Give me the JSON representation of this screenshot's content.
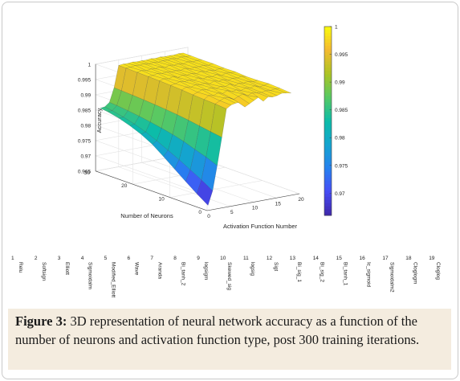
{
  "chart_data": {
    "type": "surface3d",
    "title": "",
    "xlabel": "Activation Function Number",
    "ylabel": "Number of Neurons",
    "zlabel": "Accuracy",
    "xlim": [
      0,
      20
    ],
    "ylim": [
      0,
      30
    ],
    "zlim": [
      0.965,
      1.0
    ],
    "x_ticks": [
      "0",
      "5",
      "10",
      "15",
      "20"
    ],
    "y_ticks": [
      "0",
      "10",
      "20",
      "30"
    ],
    "z_ticks": [
      "0.965",
      "0.97",
      "0.975",
      "0.98",
      "0.985",
      "0.99",
      "0.995",
      "1"
    ],
    "colorbar": {
      "colormap": "parula",
      "range": [
        0.966,
        1.0
      ],
      "ticks": [
        "0.97",
        "0.975",
        "0.98",
        "0.985",
        "0.99",
        "0.995",
        "1"
      ]
    },
    "activation_x": [
      1,
      2,
      3,
      4,
      5,
      6,
      7,
      8,
      9,
      10,
      11,
      12,
      13,
      14,
      15,
      16,
      17,
      18,
      19
    ],
    "neurons_y": [
      1,
      4,
      7,
      10,
      13,
      16,
      19,
      22,
      25,
      28,
      30
    ],
    "accuracy_z": [
      [
        0.966,
        0.9705,
        0.9785,
        0.9875,
        0.9965,
        0.9975,
        0.9978,
        0.9979,
        0.996,
        0.9968,
        0.9976,
        0.9984,
        0.9968,
        0.9979,
        0.9976,
        0.9978,
        0.9983,
        0.9981,
        0.9978
      ],
      [
        0.9685,
        0.9728,
        0.98,
        0.988,
        0.9968,
        0.9976,
        0.9982,
        0.998,
        0.9972,
        0.9979,
        0.9984,
        0.9976,
        0.9982,
        0.998,
        0.9978,
        0.9981,
        0.9979,
        0.9982,
        0.9981
      ],
      [
        0.9712,
        0.9748,
        0.9812,
        0.9886,
        0.997,
        0.998,
        0.9977,
        0.9983,
        0.9978,
        0.9985,
        0.9979,
        0.9982,
        0.9977,
        0.9983,
        0.998,
        0.9984,
        0.9978,
        0.998,
        0.9983
      ],
      [
        0.974,
        0.9768,
        0.9825,
        0.9892,
        0.9972,
        0.9978,
        0.9983,
        0.998,
        0.9984,
        0.9979,
        0.9983,
        0.998,
        0.9985,
        0.9978,
        0.9982,
        0.998,
        0.9983,
        0.9979,
        0.9981
      ],
      [
        0.9768,
        0.9786,
        0.9835,
        0.9897,
        0.9975,
        0.9982,
        0.9979,
        0.9984,
        0.9981,
        0.9983,
        0.9978,
        0.9985,
        0.9981,
        0.9984,
        0.9979,
        0.9983,
        0.9981,
        0.9984,
        0.998
      ],
      [
        0.9795,
        0.9804,
        0.9843,
        0.9901,
        0.9977,
        0.998,
        0.9984,
        0.9981,
        0.9983,
        0.998,
        0.9985,
        0.9979,
        0.9983,
        0.9981,
        0.9985,
        0.9979,
        0.9984,
        0.9982,
        0.9983
      ],
      [
        0.9815,
        0.982,
        0.985,
        0.9904,
        0.9979,
        0.9983,
        0.998,
        0.9985,
        0.9979,
        0.9984,
        0.9981,
        0.9984,
        0.998,
        0.9985,
        0.9981,
        0.9984,
        0.998,
        0.9983,
        0.9982
      ],
      [
        0.983,
        0.9833,
        0.9856,
        0.9907,
        0.998,
        0.9981,
        0.9985,
        0.9982,
        0.9984,
        0.9981,
        0.9983,
        0.9981,
        0.9985,
        0.998,
        0.9983,
        0.9982,
        0.9984,
        0.9981,
        0.9984
      ],
      [
        0.9842,
        0.9843,
        0.9861,
        0.9909,
        0.9981,
        0.9984,
        0.9981,
        0.9984,
        0.9982,
        0.9985,
        0.998,
        0.9985,
        0.9982,
        0.9984,
        0.9981,
        0.9985,
        0.9982,
        0.9984,
        0.9983
      ],
      [
        0.985,
        0.9851,
        0.9865,
        0.9911,
        0.9982,
        0.9982,
        0.9985,
        0.9983,
        0.9985,
        0.9982,
        0.9984,
        0.9982,
        0.9984,
        0.9983,
        0.9985,
        0.9982,
        0.9985,
        0.9983,
        0.9984
      ],
      [
        0.9853,
        0.9855,
        0.9867,
        0.9912,
        0.9982,
        0.9984,
        0.9983,
        0.9985,
        0.9983,
        0.9984,
        0.9983,
        0.9985,
        0.9983,
        0.9985,
        0.9983,
        0.9984,
        0.9983,
        0.9985,
        0.9984
      ]
    ]
  },
  "function_list": [
    {
      "num": "1",
      "name": "Relu"
    },
    {
      "num": "2",
      "name": "Softsign"
    },
    {
      "num": "3",
      "name": "Elliott"
    },
    {
      "num": "4",
      "name": "Sigmoidalm"
    },
    {
      "num": "5",
      "name": "Modified_Elliott"
    },
    {
      "num": "6",
      "name": "Wave"
    },
    {
      "num": "7",
      "name": "Aranda"
    },
    {
      "num": "8",
      "name": "Bi_tanh_2"
    },
    {
      "num": "9",
      "name": "logsigm"
    },
    {
      "num": "10",
      "name": "Skewed_sig"
    },
    {
      "num": "11",
      "name": "logsig"
    },
    {
      "num": "12",
      "name": "Sigt"
    },
    {
      "num": "13",
      "name": "Bi_sig_1"
    },
    {
      "num": "14",
      "name": "Bi_sig_2"
    },
    {
      "num": "15",
      "name": "Bi_tanh_1"
    },
    {
      "num": "16",
      "name": "Ic_sigmoid"
    },
    {
      "num": "17",
      "name": "Sigmoidalm2"
    },
    {
      "num": "18",
      "name": "Cloglogm"
    },
    {
      "num": "19",
      "name": "Cloglog"
    }
  ],
  "caption": {
    "label": "Figure 3:",
    "text": " 3D representation of neural network accuracy as a function of the number of neurons and activation function type, post 300 training iterations."
  }
}
